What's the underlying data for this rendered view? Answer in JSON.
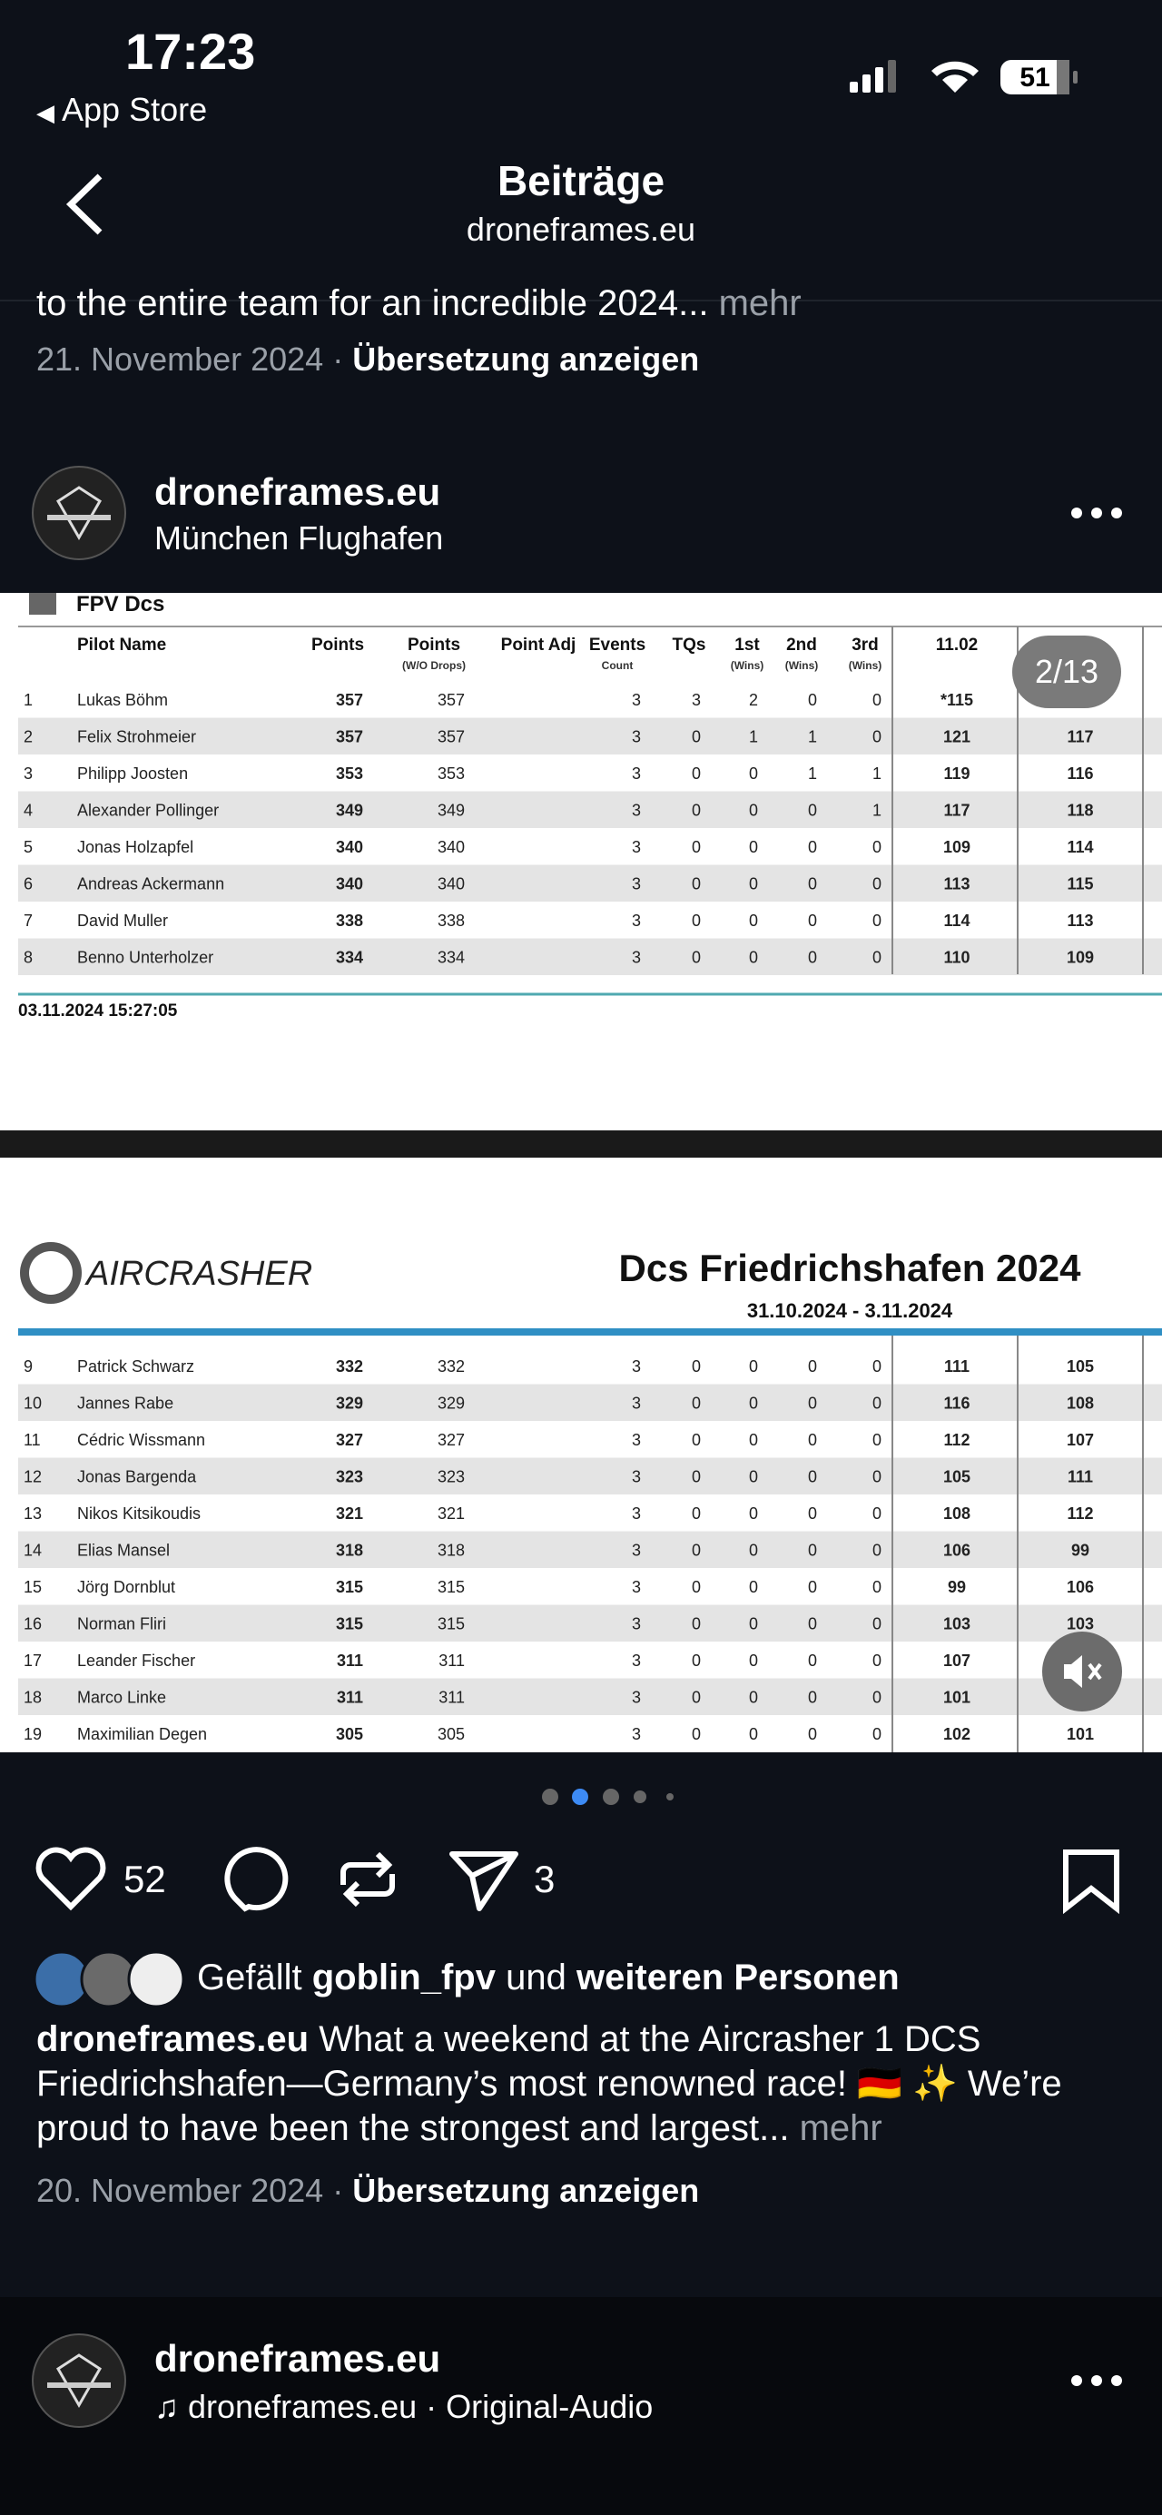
{
  "status": {
    "time": "17:23",
    "back": "App Store",
    "battery": "51"
  },
  "header": {
    "title": "Beiträge",
    "subtitle": "droneframes.eu"
  },
  "prev_post": {
    "caption_tail": "to the entire team for an incredible 2024...",
    "more": "mehr",
    "date": "21. November 2024",
    "translate": "Übersetzung anzeigen"
  },
  "post": {
    "username": "droneframes.eu",
    "location": "München Flughafen",
    "counter": "2/13",
    "image1": {
      "section": "FPV Dcs",
      "headers": [
        {
          "label": "Pilot Name"
        },
        {
          "label": "Points"
        },
        {
          "label": "Points",
          "sub": "(W/O Drops)"
        },
        {
          "label": "Point Adj"
        },
        {
          "label": "Events",
          "sub": "Count"
        },
        {
          "label": "TQs"
        },
        {
          "label": "1st",
          "sub": "(Wins)"
        },
        {
          "label": "2nd",
          "sub": "(Wins)"
        },
        {
          "label": "3rd",
          "sub": "(Wins)"
        },
        {
          "label": "11.02"
        }
      ],
      "rows": [
        [
          1,
          "Lukas Böhm",
          357,
          357,
          3,
          3,
          2,
          0,
          0,
          "*115"
        ],
        [
          2,
          "Felix Strohmeier",
          357,
          357,
          3,
          0,
          1,
          1,
          0,
          121,
          117
        ],
        [
          3,
          "Philipp Joosten",
          353,
          353,
          3,
          0,
          0,
          1,
          1,
          119,
          116
        ],
        [
          4,
          "Alexander Pollinger",
          349,
          349,
          3,
          0,
          0,
          0,
          1,
          117,
          118
        ],
        [
          5,
          "Jonas Holzapfel",
          340,
          340,
          3,
          0,
          0,
          0,
          0,
          109,
          114
        ],
        [
          6,
          "Andreas Ackermann",
          340,
          340,
          3,
          0,
          0,
          0,
          0,
          113,
          115
        ],
        [
          7,
          "David Muller",
          338,
          338,
          3,
          0,
          0,
          0,
          0,
          114,
          113
        ],
        [
          8,
          "Benno Unterholzer",
          334,
          334,
          3,
          0,
          0,
          0,
          0,
          110,
          109
        ]
      ],
      "footer": "03.11.2024 15:27:05"
    },
    "image2": {
      "logo": "AIRCRASHER",
      "title": "Dcs Friedrichshafen 2024",
      "dates": "31.10.2024 - 3.11.2024",
      "rows": [
        [
          9,
          "Patrick Schwarz",
          332,
          332,
          3,
          0,
          0,
          0,
          0,
          111,
          105
        ],
        [
          10,
          "Jannes Rabe",
          329,
          329,
          3,
          0,
          0,
          0,
          0,
          116,
          108
        ],
        [
          11,
          "Cédric Wissmann",
          327,
          327,
          3,
          0,
          0,
          0,
          0,
          112,
          107
        ],
        [
          12,
          "Jonas Bargenda",
          323,
          323,
          3,
          0,
          0,
          0,
          0,
          105,
          111
        ],
        [
          13,
          "Nikos Kitsikoudis",
          321,
          321,
          3,
          0,
          0,
          0,
          0,
          108,
          112
        ],
        [
          14,
          "Elias Mansel",
          318,
          318,
          3,
          0,
          0,
          0,
          0,
          106,
          99
        ],
        [
          15,
          "Jörg Dornblut",
          315,
          315,
          3,
          0,
          0,
          0,
          0,
          99,
          106
        ],
        [
          16,
          "Norman Fliri",
          315,
          315,
          3,
          0,
          0,
          0,
          0,
          103,
          103
        ],
        [
          17,
          "Leander Fischer",
          311,
          311,
          3,
          0,
          0,
          0,
          0,
          107
        ],
        [
          18,
          "Marco Linke",
          311,
          311,
          3,
          0,
          0,
          0,
          0,
          101
        ],
        [
          19,
          "Maximilian Degen",
          305,
          305,
          3,
          0,
          0,
          0,
          0,
          102,
          101
        ]
      ]
    },
    "likes": 52,
    "shares": 3,
    "liked_by": {
      "prefix": "Gefällt",
      "user": "goblin_fpv",
      "joiner": "und",
      "others": "weiteren Personen"
    },
    "caption": {
      "user": "droneframes.eu",
      "text": "What a weekend at the Aircrasher 1 DCS Friedrichshafen—Germany’s most renowned race! 🇩🇪 ✨ We’re proud to have been the strongest and largest...",
      "more": "mehr"
    },
    "date": "20. November 2024",
    "translate": "Übersetzung anzeigen"
  },
  "next_post": {
    "username": "droneframes.eu",
    "audio": "droneframes.eu · Original-Audio"
  }
}
